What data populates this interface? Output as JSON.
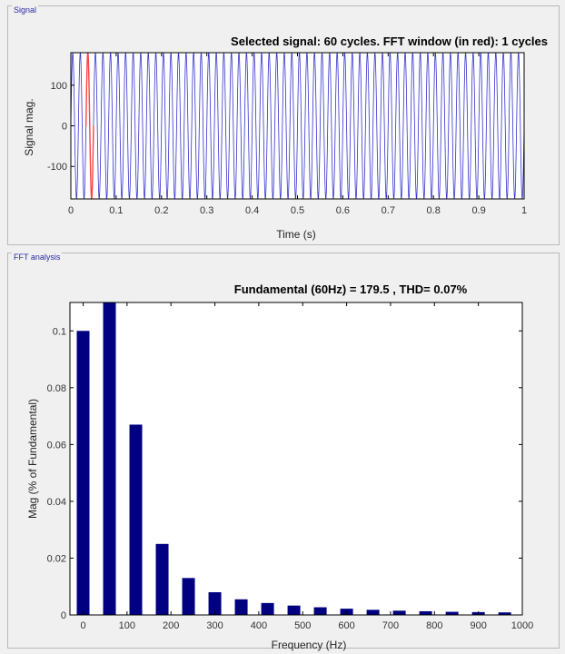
{
  "panels": {
    "signal_title": "Signal",
    "fft_title": "FFT analysis"
  },
  "chart_data": [
    {
      "type": "line",
      "title": "Selected signal: 60 cycles. FFT window (in red): 1 cycles",
      "xlabel": "Time (s)",
      "ylabel": "Signal mag.",
      "xlim": [
        0,
        1
      ],
      "ylim": [
        -180,
        180
      ],
      "x_ticks": [
        "0",
        "0.1",
        "0.2",
        "0.3",
        "0.4",
        "0.5",
        "0.6",
        "0.7",
        "0.8",
        "0.9",
        "1"
      ],
      "y_ticks": [
        "100",
        "0",
        "-100"
      ],
      "series": [
        {
          "amplitude": 179.5,
          "frequency": 60,
          "color": "#3333cc"
        }
      ],
      "fft_window": {
        "start": 0.0333,
        "end": 0.05,
        "color": "#ff4444"
      }
    },
    {
      "type": "bar",
      "title": "Fundamental (60Hz) = 179.5 , THD= 0.07%",
      "xlabel": "Frequency (Hz)",
      "ylabel": "Mag (% of Fundamental)",
      "xlim": [
        -30,
        1000
      ],
      "ylim": [
        0,
        0.11
      ],
      "x_ticks": [
        "0",
        "100",
        "200",
        "300",
        "400",
        "500",
        "600",
        "700",
        "800",
        "900",
        "1000"
      ],
      "y_ticks": [
        "0",
        "0.02",
        "0.04",
        "0.06",
        "0.08",
        "0.1"
      ],
      "x": [
        0,
        60,
        120,
        180,
        240,
        300,
        360,
        420,
        480,
        540,
        600,
        660,
        720,
        780,
        840,
        900,
        960
      ],
      "values": [
        0.1,
        0.11,
        0.067,
        0.025,
        0.013,
        0.008,
        0.0055,
        0.0042,
        0.0033,
        0.0027,
        0.0022,
        0.0018,
        0.0015,
        0.0013,
        0.0011,
        0.001,
        0.0009
      ],
      "color": "#000080"
    }
  ]
}
